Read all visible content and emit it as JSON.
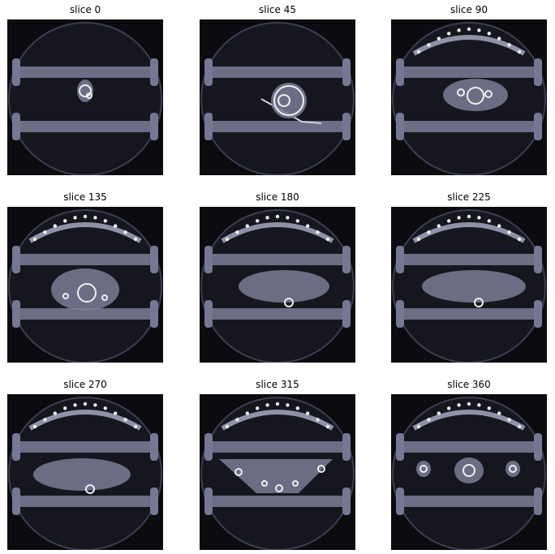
{
  "figure": {
    "panels": [
      {
        "title": "slice 0",
        "content": "skull"
      },
      {
        "title": "slice 45",
        "content": "head"
      },
      {
        "title": "slice 90",
        "content": "neck"
      },
      {
        "title": "slice 135",
        "content": "chest"
      },
      {
        "title": "slice 180",
        "content": "abdomen_upper"
      },
      {
        "title": "slice 225",
        "content": "abdomen"
      },
      {
        "title": "slice 270",
        "content": "abdomen_lower"
      },
      {
        "title": "slice 315",
        "content": "pelvis"
      },
      {
        "title": "slice 360",
        "content": "legs"
      }
    ],
    "colors": {
      "background": "#0b0b10",
      "tube": "#16161f",
      "bars": "#6b6e85",
      "tissue": "#7b7d96",
      "bone": "#e9f2f0"
    }
  }
}
